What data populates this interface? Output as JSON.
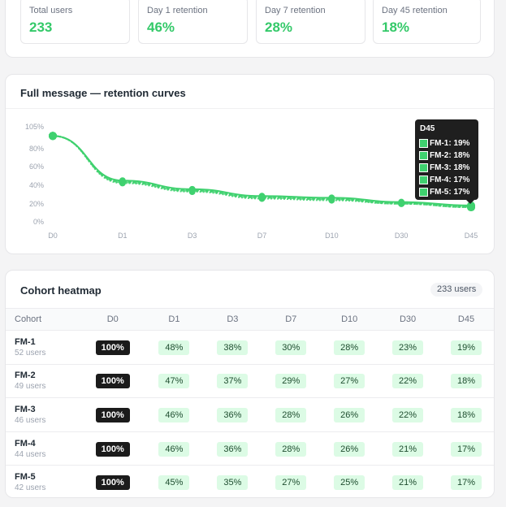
{
  "stats": [
    {
      "label": "Total users",
      "value": "233"
    },
    {
      "label": "Day 1 retention",
      "value": "46%"
    },
    {
      "label": "Day 7 retention",
      "value": "28%"
    },
    {
      "label": "Day 45 retention",
      "value": "18%"
    }
  ],
  "chart": {
    "title": "Full message — retention curves",
    "accent": "#3fd16f"
  },
  "chart_data": {
    "type": "line",
    "title": "Full message — retention curves",
    "categories": [
      "D0",
      "D1",
      "D3",
      "D7",
      "D10",
      "D30",
      "D45"
    ],
    "y_ticks": [
      "105%",
      "80%",
      "60%",
      "40%",
      "20%",
      "0%"
    ],
    "ylim": [
      0,
      105
    ],
    "grid": false,
    "series": [
      {
        "name": "FM-1",
        "values": [
          100,
          48,
          38,
          30,
          28,
          23,
          19
        ]
      },
      {
        "name": "FM-2",
        "values": [
          100,
          47,
          37,
          29,
          27,
          22,
          18
        ]
      },
      {
        "name": "FM-3",
        "values": [
          100,
          46,
          36,
          28,
          26,
          22,
          18
        ]
      },
      {
        "name": "FM-4",
        "values": [
          100,
          46,
          36,
          28,
          26,
          21,
          17
        ]
      },
      {
        "name": "FM-5",
        "values": [
          100,
          45,
          35,
          27,
          25,
          21,
          17
        ]
      }
    ]
  },
  "tooltip": {
    "title": "D45",
    "rows": [
      "FM-1: 19%",
      "FM-2: 18%",
      "FM-3: 18%",
      "FM-4: 17%",
      "FM-5: 17%"
    ]
  },
  "heatmap": {
    "title": "Cohort heatmap",
    "badge": "233 users",
    "cohort_header": "Cohort",
    "columns": [
      "D0",
      "D1",
      "D3",
      "D7",
      "D10",
      "D30",
      "D45"
    ],
    "rows": [
      {
        "name": "FM-1",
        "users": "52 users",
        "values": [
          "100%",
          "48%",
          "38%",
          "30%",
          "28%",
          "23%",
          "19%"
        ]
      },
      {
        "name": "FM-2",
        "users": "49 users",
        "values": [
          "100%",
          "47%",
          "37%",
          "29%",
          "27%",
          "22%",
          "18%"
        ]
      },
      {
        "name": "FM-3",
        "users": "46 users",
        "values": [
          "100%",
          "46%",
          "36%",
          "28%",
          "26%",
          "22%",
          "18%"
        ]
      },
      {
        "name": "FM-4",
        "users": "44 users",
        "values": [
          "100%",
          "46%",
          "36%",
          "28%",
          "26%",
          "21%",
          "17%"
        ]
      },
      {
        "name": "FM-5",
        "users": "42 users",
        "values": [
          "100%",
          "45%",
          "35%",
          "27%",
          "25%",
          "21%",
          "17%"
        ]
      }
    ]
  }
}
